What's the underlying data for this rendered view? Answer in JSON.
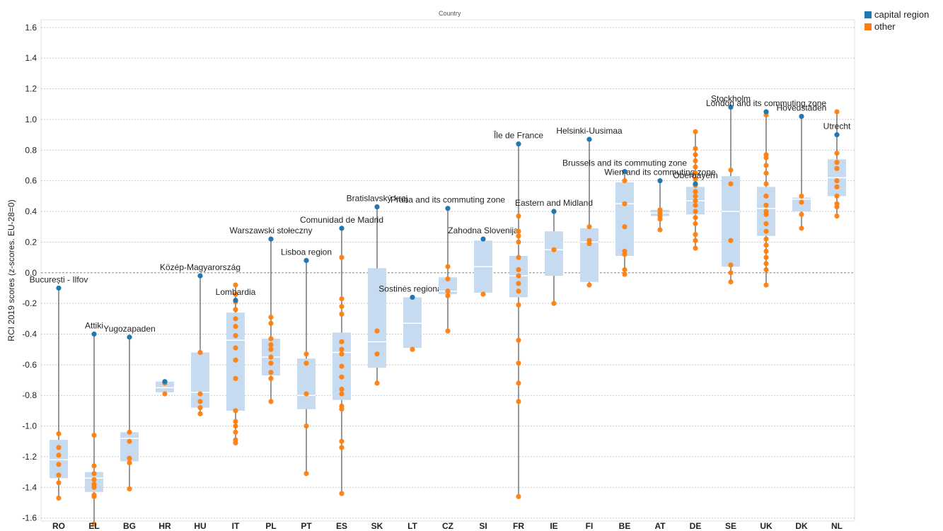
{
  "chart_data": {
    "type": "scatter",
    "title": "Country",
    "ylabel": "RCI 2019 scores (z-scores. EU-28=0)",
    "xlabel": "",
    "ylim": [
      -1.62,
      1.65
    ],
    "yticks": [
      -1.6,
      -1.4,
      -1.2,
      -1.0,
      -0.8,
      -0.6,
      -0.4,
      -0.2,
      0.0,
      0.2,
      0.4,
      0.6,
      0.8,
      1.0,
      1.2,
      1.4,
      1.6
    ],
    "ytick_labels": [
      "-1.6",
      "-1.4",
      "-1.2",
      "-1.0",
      "-0.8",
      "-0.6",
      "-0.4",
      "-0.2",
      "0.0",
      "0.2",
      "0.4",
      "0.6",
      "0.8",
      "1.0",
      "1.2",
      "1.4",
      "1.6"
    ],
    "grid": true,
    "legend_position": "top-right",
    "legend": [
      {
        "name": "capital region",
        "color": "#1f77b4"
      },
      {
        "name": "other",
        "color": "#ff7f0e"
      }
    ],
    "colors": {
      "capital": "#1f77b4",
      "other": "#ff7f0e",
      "box": "#c6dbef",
      "median": "#ffffff",
      "whisker": "#333333"
    },
    "countries": [
      {
        "code": "RO",
        "capital": {
          "name": "București - Ilfov",
          "value": -0.1
        },
        "others": [
          -1.05,
          -1.14,
          -1.19,
          -1.25,
          -1.32,
          -1.37,
          -1.47
        ],
        "box": [
          -1.34,
          -1.22,
          -1.09
        ]
      },
      {
        "code": "EL",
        "capital": {
          "name": "Attiki",
          "value": -0.4
        },
        "others": [
          -1.06,
          -1.26,
          -1.31,
          -1.35,
          -1.38,
          -1.4,
          -1.45,
          -1.46,
          -1.64
        ],
        "box": [
          -1.43,
          -1.34,
          -1.3
        ]
      },
      {
        "code": "BG",
        "capital": {
          "name": "Yugozapaden",
          "value": -0.42
        },
        "others": [
          -1.04,
          -1.1,
          -1.21,
          -1.24,
          -1.41
        ],
        "box": [
          -1.23,
          -1.08,
          -1.04
        ]
      },
      {
        "code": "HR",
        "capital": {
          "name": "",
          "value": -0.71
        },
        "others": [
          -0.72,
          -0.79
        ],
        "box": [
          -0.78,
          -0.75,
          -0.71
        ]
      },
      {
        "code": "HU",
        "capital": {
          "name": "Közép-Magyarország",
          "value": -0.02
        },
        "others": [
          -0.52,
          -0.79,
          -0.84,
          -0.88,
          -0.92
        ],
        "box": [
          -0.88,
          -0.78,
          -0.52
        ]
      },
      {
        "code": "IT",
        "capital": {
          "name": "Lombardia",
          "value": -0.18
        },
        "others": [
          -0.08,
          -0.14,
          -0.19,
          -0.24,
          -0.3,
          -0.35,
          -0.41,
          -0.49,
          -0.57,
          -0.69,
          -0.9,
          -0.97,
          -1.0,
          -1.04,
          -1.09,
          -1.11
        ],
        "box": [
          -0.9,
          -0.44,
          -0.26
        ]
      },
      {
        "code": "PL",
        "capital": {
          "name": "Warszawski stołeczny",
          "value": 0.22
        },
        "others": [
          -0.29,
          -0.33,
          -0.43,
          -0.47,
          -0.5,
          -0.55,
          -0.59,
          -0.65,
          -0.69,
          -0.84
        ],
        "box": [
          -0.67,
          -0.55,
          -0.43
        ]
      },
      {
        "code": "PT",
        "capital": {
          "name": "Lisboa region",
          "value": 0.08
        },
        "others": [
          -0.53,
          -0.59,
          -0.79,
          -1.0,
          -1.31
        ],
        "box": [
          -0.89,
          -0.8,
          -0.56
        ]
      },
      {
        "code": "ES",
        "capital": {
          "name": "Comunidad de Madrid",
          "value": 0.29
        },
        "others": [
          0.1,
          -0.17,
          -0.22,
          -0.27,
          -0.45,
          -0.5,
          -0.53,
          -0.61,
          -0.68,
          -0.76,
          -0.79,
          -0.87,
          -0.89,
          -1.1,
          -1.14,
          -1.44
        ],
        "box": [
          -0.83,
          -0.52,
          -0.39
        ]
      },
      {
        "code": "SK",
        "capital": {
          "name": "Bratislavský kraj",
          "value": 0.43
        },
        "others": [
          -0.38,
          -0.53,
          -0.72
        ],
        "box": [
          -0.62,
          -0.45,
          0.03
        ]
      },
      {
        "code": "LT",
        "capital": {
          "name": "Sostinės regionas",
          "value": -0.16
        },
        "others": [
          -0.5
        ],
        "box": [
          -0.49,
          -0.33,
          -0.16
        ]
      },
      {
        "code": "CZ",
        "capital": {
          "name": "Praha and its commuting zone",
          "value": 0.42
        },
        "others": [
          0.04,
          -0.04,
          -0.12,
          -0.15,
          -0.38
        ],
        "box": [
          -0.14,
          -0.12,
          -0.03
        ]
      },
      {
        "code": "SI",
        "capital": {
          "name": "Zahodna Slovenija",
          "value": 0.22
        },
        "others": [
          -0.14
        ],
        "box": [
          -0.13,
          0.04,
          0.21
        ]
      },
      {
        "code": "FR",
        "capital": {
          "name": "Île de France",
          "value": 0.84
        },
        "others": [
          0.37,
          0.27,
          0.24,
          0.2,
          0.1,
          0.02,
          -0.02,
          -0.07,
          -0.12,
          -0.21,
          -0.44,
          -0.59,
          -0.72,
          -0.84,
          -1.46
        ],
        "box": [
          -0.16,
          -0.02,
          0.11
        ]
      },
      {
        "code": "IE",
        "capital": {
          "name": "Eastern and Midland",
          "value": 0.4
        },
        "others": [
          0.15,
          -0.2
        ],
        "box": [
          -0.02,
          0.15,
          0.27
        ]
      },
      {
        "code": "FI",
        "capital": {
          "name": "Helsinki-Uusimaa",
          "value": 0.87
        },
        "others": [
          0.3,
          0.21,
          0.19,
          -0.08
        ],
        "box": [
          -0.06,
          0.2,
          0.29
        ]
      },
      {
        "code": "BE",
        "capital": {
          "name": "Brussels and its commuting zone",
          "value": 0.66
        },
        "others": [
          0.6,
          0.45,
          0.3,
          0.14,
          0.12,
          0.02,
          -0.01
        ],
        "box": [
          0.11,
          0.45,
          0.59
        ]
      },
      {
        "code": "AT",
        "capital": {
          "name": "Wien and its commuting zone",
          "value": 0.6
        },
        "others": [
          0.41,
          0.39,
          0.37,
          0.35,
          0.28
        ],
        "box": [
          0.37,
          0.39,
          0.41
        ]
      },
      {
        "code": "DE",
        "capital": {
          "name": "Oberbayern",
          "value": 0.58
        },
        "others": [
          0.92,
          0.81,
          0.77,
          0.73,
          0.69,
          0.65,
          0.61,
          0.57,
          0.53,
          0.5,
          0.47,
          0.44,
          0.4,
          0.36,
          0.32,
          0.25,
          0.21,
          0.16
        ],
        "box": [
          0.38,
          0.47,
          0.56
        ]
      },
      {
        "code": "SE",
        "capital": {
          "name": "Stockholm",
          "value": 1.08
        },
        "others": [
          0.67,
          0.58,
          0.21,
          0.05,
          0.0,
          -0.06
        ],
        "box": [
          0.04,
          0.4,
          0.63
        ]
      },
      {
        "code": "UK",
        "capital": {
          "name": "London and its commuting zone",
          "value": 1.05
        },
        "others": [
          1.03,
          0.77,
          0.75,
          0.7,
          0.65,
          0.58,
          0.5,
          0.44,
          0.4,
          0.38,
          0.32,
          0.27,
          0.22,
          0.18,
          0.14,
          0.1,
          0.06,
          0.02,
          -0.08
        ],
        "box": [
          0.24,
          0.42,
          0.56
        ]
      },
      {
        "code": "DK",
        "capital": {
          "name": "Hovedstaden",
          "value": 1.02
        },
        "others": [
          0.5,
          0.46,
          0.38,
          0.29
        ],
        "box": [
          0.4,
          0.48,
          0.49
        ]
      },
      {
        "code": "NL",
        "capital": {
          "name": "Utrecht",
          "value": 0.9
        },
        "others": [
          1.05,
          0.78,
          0.72,
          0.68,
          0.6,
          0.56,
          0.5,
          0.45,
          0.43,
          0.37
        ],
        "box": [
          0.5,
          0.62,
          0.74
        ]
      }
    ]
  }
}
